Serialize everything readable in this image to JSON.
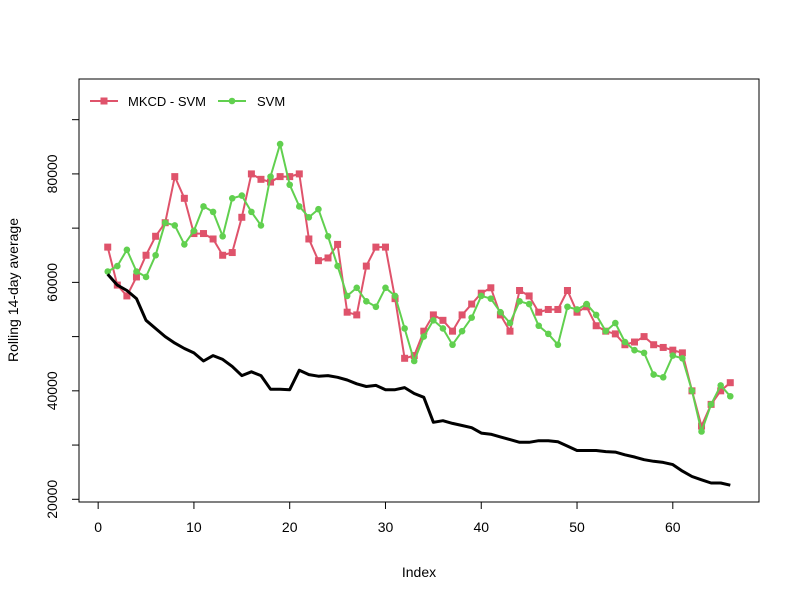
{
  "chart_data": {
    "type": "line",
    "title": "",
    "xlabel": "Index",
    "ylabel": "Rolling 14-day average",
    "xlim": [
      -2,
      69
    ],
    "ylim": [
      19500,
      97500
    ],
    "xticks": [
      0,
      10,
      20,
      30,
      40,
      50,
      60
    ],
    "yticks": [
      20000,
      40000,
      60000,
      80000
    ],
    "yticks_extra": [
      30000,
      50000,
      70000,
      90000
    ],
    "legend_position": "top-left",
    "series": [
      {
        "name": "MKCD - SVM",
        "color": "#DF536B",
        "marker": "square",
        "x": [
          1,
          2,
          3,
          4,
          5,
          6,
          7,
          8,
          9,
          10,
          11,
          12,
          13,
          14,
          15,
          16,
          17,
          18,
          19,
          20,
          21,
          22,
          23,
          24,
          25,
          26,
          27,
          28,
          29,
          30,
          31,
          32,
          33,
          34,
          35,
          36,
          37,
          38,
          39,
          40,
          41,
          42,
          43,
          44,
          45,
          46,
          47,
          48,
          49,
          50,
          51,
          52,
          53,
          54,
          55,
          56,
          57,
          58,
          59,
          60,
          61,
          62,
          63,
          64,
          65,
          66
        ],
        "values": [
          66500,
          59500,
          57500,
          61000,
          65000,
          68500,
          71000,
          79500,
          75500,
          69000,
          69000,
          68000,
          65000,
          65500,
          72000,
          80000,
          79000,
          78500,
          79500,
          79500,
          80000,
          68000,
          64000,
          64500,
          67000,
          54500,
          54000,
          63000,
          66500,
          66500,
          57000,
          46000,
          46500,
          51000,
          54000,
          53000,
          51000,
          54000,
          56000,
          58000,
          59000,
          54000,
          51000,
          58500,
          57500,
          54500,
          55000,
          55000,
          58500,
          54500,
          55500,
          52000,
          51000,
          50500,
          48500,
          49000,
          50000,
          48500,
          48000,
          47500,
          47000,
          40000,
          33500,
          37500,
          40000,
          41500
        ]
      },
      {
        "name": "SVM",
        "color": "#61D04F",
        "marker": "circle",
        "x": [
          1,
          2,
          3,
          4,
          5,
          6,
          7,
          8,
          9,
          10,
          11,
          12,
          13,
          14,
          15,
          16,
          17,
          18,
          19,
          20,
          21,
          22,
          23,
          24,
          25,
          26,
          27,
          28,
          29,
          30,
          31,
          32,
          33,
          34,
          35,
          36,
          37,
          38,
          39,
          40,
          41,
          42,
          43,
          44,
          45,
          46,
          47,
          48,
          49,
          50,
          51,
          52,
          53,
          54,
          55,
          56,
          57,
          58,
          59,
          60,
          61,
          62,
          63,
          64,
          65,
          66
        ],
        "values": [
          62000,
          63000,
          66000,
          62000,
          61000,
          65000,
          71000,
          70500,
          67000,
          69500,
          74000,
          73000,
          68500,
          75500,
          76000,
          73000,
          70500,
          79500,
          85500,
          78000,
          74000,
          72000,
          73500,
          68500,
          63000,
          57500,
          59000,
          56500,
          55500,
          59000,
          57500,
          51500,
          45500,
          50000,
          53000,
          51500,
          48500,
          51000,
          53500,
          57500,
          57000,
          54500,
          52500,
          56500,
          56000,
          52000,
          50500,
          48500,
          55500,
          55000,
          56000,
          54000,
          51000,
          52500,
          49000,
          47500,
          47000,
          43000,
          42500,
          46500,
          46000,
          40000,
          32500,
          37500,
          41000,
          39000
        ]
      },
      {
        "name": "",
        "color": "#000000",
        "marker": "none",
        "x": [
          1,
          2,
          3,
          4,
          5,
          6,
          7,
          8,
          9,
          10,
          11,
          12,
          13,
          14,
          15,
          16,
          17,
          18,
          19,
          20,
          21,
          22,
          23,
          24,
          25,
          26,
          27,
          28,
          29,
          30,
          31,
          32,
          33,
          34,
          35,
          36,
          37,
          38,
          39,
          40,
          41,
          42,
          43,
          44,
          45,
          46,
          47,
          48,
          49,
          50,
          51,
          52,
          53,
          54,
          55,
          56,
          57,
          58,
          59,
          60,
          61,
          62,
          63,
          64,
          65,
          66
        ],
        "values": [
          61500,
          59500,
          58500,
          57000,
          53000,
          51500,
          50000,
          48800,
          47800,
          47000,
          45500,
          46500,
          45800,
          44500,
          42800,
          43500,
          42800,
          40300,
          40300,
          40200,
          43800,
          43000,
          42700,
          42800,
          42500,
          42000,
          41300,
          40800,
          41000,
          40200,
          40200,
          40600,
          39500,
          38800,
          34200,
          34500,
          34000,
          33600,
          33200,
          32200,
          32000,
          31500,
          31000,
          30500,
          30500,
          30800,
          30800,
          30600,
          29800,
          29000,
          29000,
          29000,
          28800,
          28700,
          28200,
          27800,
          27300,
          27000,
          26800,
          26400,
          25200,
          24200,
          23600,
          23000,
          23000,
          22600
        ]
      }
    ]
  }
}
